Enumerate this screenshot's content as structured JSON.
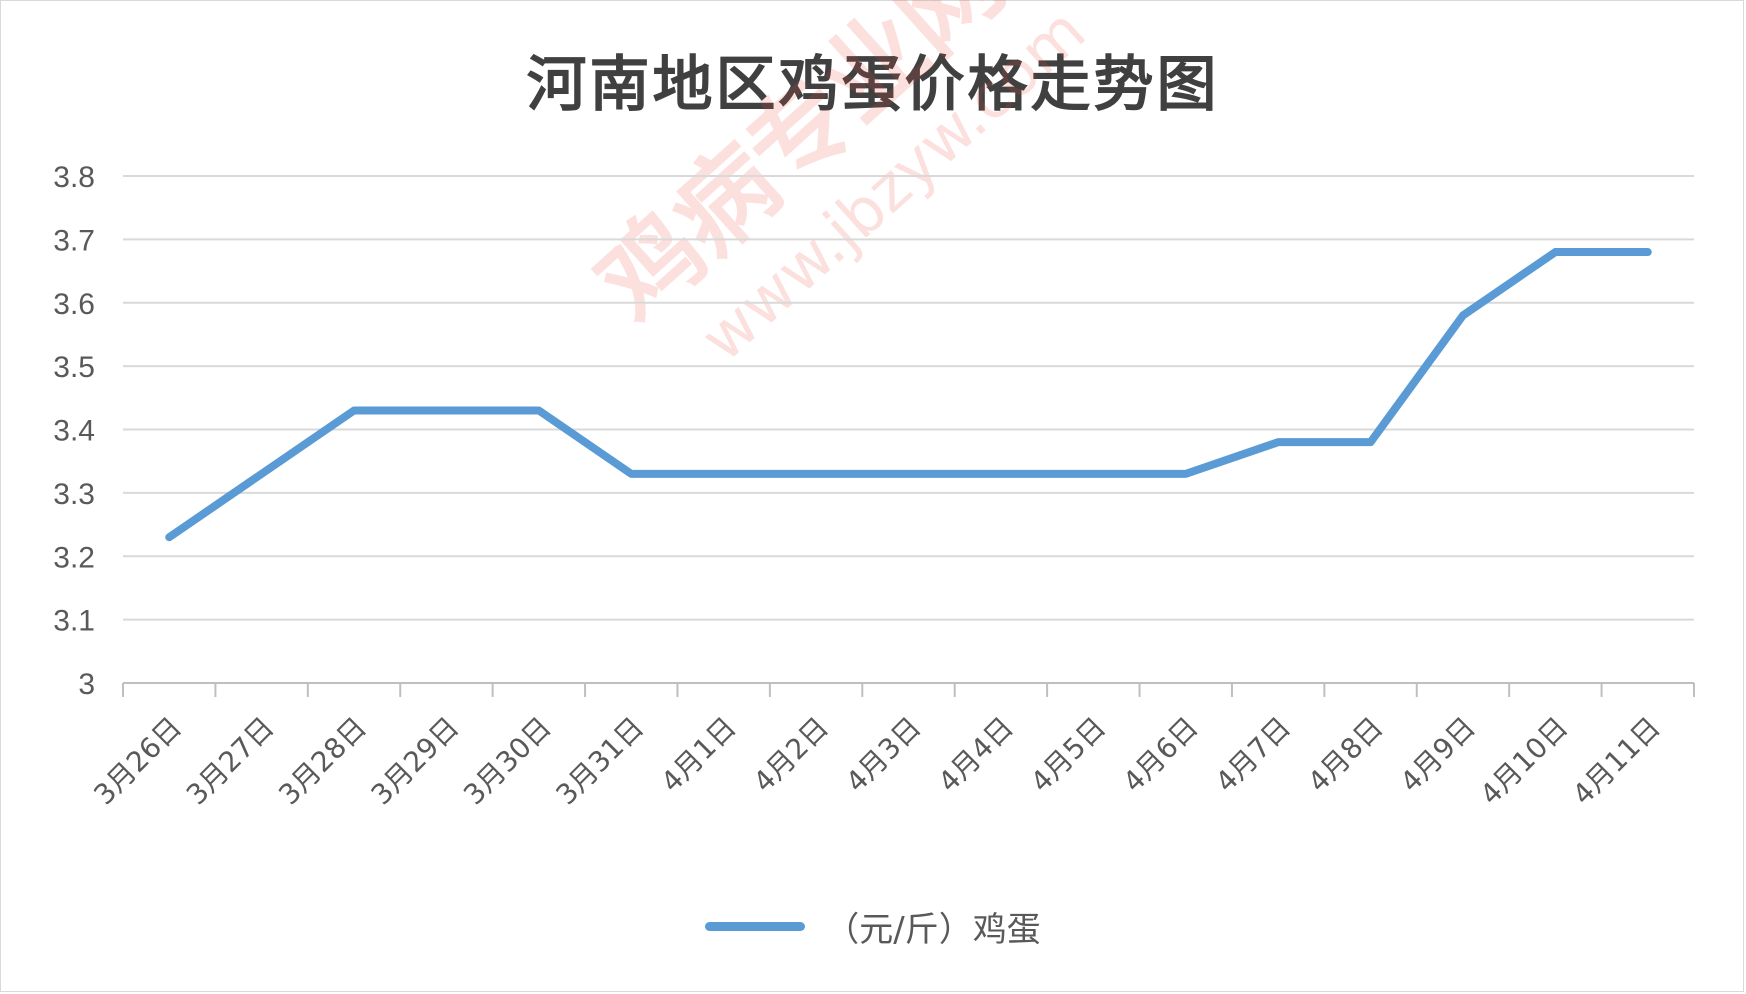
{
  "chart_data": {
    "type": "line",
    "title": "河南地区鸡蛋价格走势图",
    "categories": [
      "3月26日",
      "3月27日",
      "3月28日",
      "3月29日",
      "3月30日",
      "3月31日",
      "4月1日",
      "4月2日",
      "4月3日",
      "4月4日",
      "4月5日",
      "4月6日",
      "4月7日",
      "4月8日",
      "4月9日",
      "4月10日",
      "4月11日"
    ],
    "series": [
      {
        "name": "（元/斤）鸡蛋",
        "values": [
          3.23,
          3.33,
          3.43,
          3.43,
          3.43,
          3.33,
          3.33,
          3.33,
          3.33,
          3.33,
          3.33,
          3.33,
          3.38,
          3.38,
          3.58,
          3.68,
          3.68
        ],
        "color": "#5b9bd5"
      }
    ],
    "ylim": [
      3,
      3.8
    ],
    "yticks": [
      "3",
      "3.1",
      "3.2",
      "3.3",
      "3.4",
      "3.5",
      "3.6",
      "3.7",
      "3.8"
    ],
    "grid": true,
    "legend_position": "bottom",
    "xlabel": "",
    "ylabel": ""
  },
  "watermark": {
    "main": "鸡病专业网",
    "url": "www.jbzyw.com"
  }
}
